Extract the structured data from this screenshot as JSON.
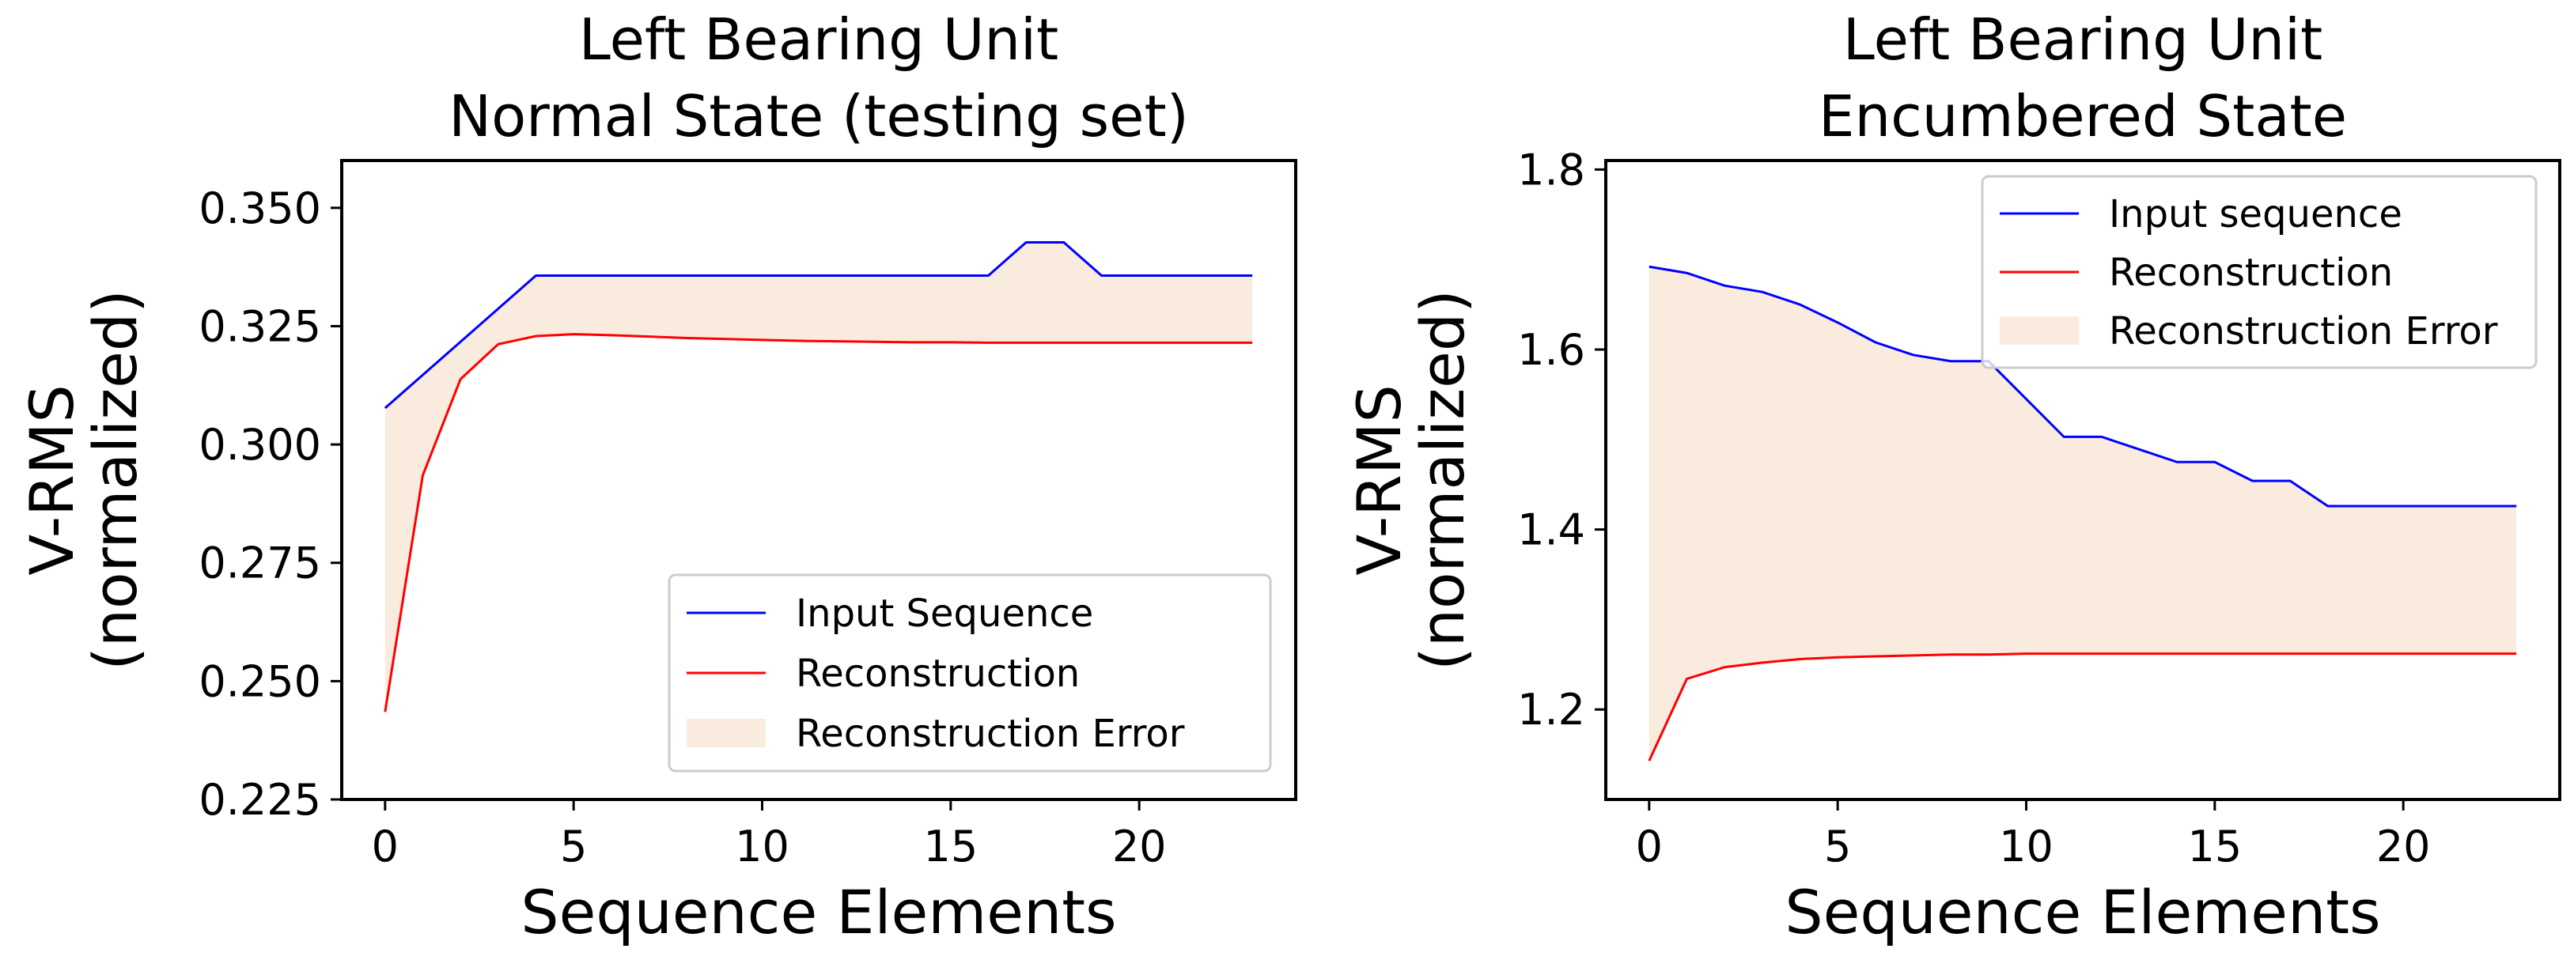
{
  "chart_data": [
    {
      "type": "line",
      "title": [
        "Left Bearing Unit",
        "Normal State (testing set)"
      ],
      "xlabel": "Sequence Elements",
      "ylabel": [
        "V-RMS",
        "(normalized)"
      ],
      "xlim": [
        -1.15,
        24.15
      ],
      "ylim": [
        0.225,
        0.36
      ],
      "xticks": [
        0,
        5,
        10,
        15,
        20
      ],
      "xtick_labels": [
        "0",
        "5",
        "10",
        "15",
        "20"
      ],
      "yticks": [
        0.225,
        0.25,
        0.275,
        0.3,
        0.325,
        0.35
      ],
      "ytick_labels": [
        "0.225",
        "0.250",
        "0.275",
        "0.300",
        "0.325",
        "0.350"
      ],
      "grid": false,
      "legend_position": "lower-right",
      "x": [
        0,
        1,
        2,
        3,
        4,
        5,
        6,
        7,
        8,
        9,
        10,
        11,
        12,
        13,
        14,
        15,
        16,
        17,
        18,
        19,
        20,
        21,
        22,
        23
      ],
      "series": [
        {
          "name": "Input Sequence",
          "color": "#0000ff",
          "values": [
            0.3077,
            0.3147,
            0.3217,
            0.3287,
            0.3357,
            0.3357,
            0.3357,
            0.3357,
            0.3357,
            0.3357,
            0.3357,
            0.3357,
            0.3357,
            0.3357,
            0.3357,
            0.3357,
            0.3357,
            0.3427,
            0.3427,
            0.3357,
            0.3357,
            0.3357,
            0.3357,
            0.3357
          ]
        },
        {
          "name": "Reconstruction",
          "color": "#ff0000",
          "values": [
            0.2435,
            0.2935,
            0.3138,
            0.3212,
            0.3229,
            0.3233,
            0.3231,
            0.3228,
            0.3225,
            0.3223,
            0.3221,
            0.3219,
            0.3218,
            0.3217,
            0.3216,
            0.3216,
            0.3215,
            0.3215,
            0.3215,
            0.3215,
            0.3215,
            0.3215,
            0.3215,
            0.3215
          ]
        }
      ],
      "fill_between": {
        "name": "Reconstruction Error",
        "color": "#faebdf"
      }
    },
    {
      "type": "line",
      "title": [
        "Left Bearing Unit",
        "Encumbered State"
      ],
      "xlabel": "Sequence Elements",
      "ylabel": [
        "V-RMS",
        "(normalized)"
      ],
      "xlim": [
        -1.15,
        24.15
      ],
      "ylim": [
        1.1,
        1.81
      ],
      "xticks": [
        0,
        5,
        10,
        15,
        20
      ],
      "xtick_labels": [
        "0",
        "5",
        "10",
        "15",
        "20"
      ],
      "yticks": [
        1.2,
        1.4,
        1.6,
        1.8
      ],
      "ytick_labels": [
        "1.2",
        "1.4",
        "1.6",
        "1.8"
      ],
      "grid": false,
      "legend_position": "upper-right",
      "x": [
        0,
        1,
        2,
        3,
        4,
        5,
        6,
        7,
        8,
        9,
        10,
        11,
        12,
        13,
        14,
        15,
        16,
        17,
        18,
        19,
        20,
        21,
        22,
        23
      ],
      "series": [
        {
          "name": "Input sequence",
          "color": "#0000ff",
          "values": [
            1.692,
            1.685,
            1.671,
            1.664,
            1.65,
            1.63,
            1.608,
            1.594,
            1.587,
            1.587,
            1.545,
            1.503,
            1.503,
            1.489,
            1.475,
            1.475,
            1.454,
            1.454,
            1.426,
            1.426,
            1.426,
            1.426,
            1.426,
            1.426
          ]
        },
        {
          "name": "Reconstruction",
          "color": "#ff0000",
          "values": [
            1.143,
            1.234,
            1.247,
            1.252,
            1.256,
            1.258,
            1.259,
            1.26,
            1.261,
            1.261,
            1.262,
            1.262,
            1.262,
            1.262,
            1.262,
            1.262,
            1.262,
            1.262,
            1.262,
            1.262,
            1.262,
            1.262,
            1.262,
            1.262
          ]
        }
      ],
      "fill_between": {
        "name": "Reconstruction Error",
        "color": "#faebdf"
      }
    }
  ]
}
